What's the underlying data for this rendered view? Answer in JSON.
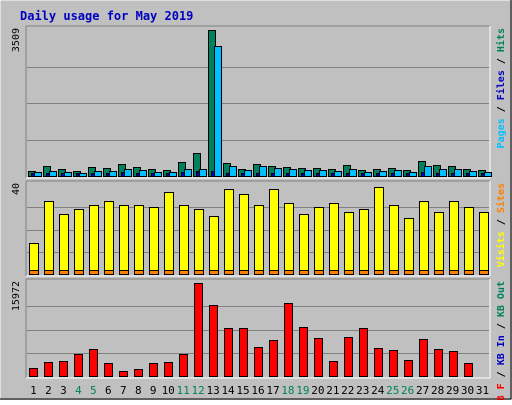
{
  "chart_data": {
    "type": "bar",
    "title": "Daily usage for May 2019",
    "categories": [
      "1",
      "2",
      "3",
      "4",
      "5",
      "6",
      "7",
      "8",
      "9",
      "10",
      "11",
      "12",
      "13",
      "14",
      "15",
      "16",
      "17",
      "18",
      "19",
      "20",
      "21",
      "22",
      "23",
      "24",
      "25",
      "26",
      "27",
      "28",
      "29",
      "30",
      "31"
    ],
    "weekend_days": [
      "4",
      "5",
      "11",
      "12",
      "18",
      "19",
      "25",
      "26"
    ],
    "panels": [
      {
        "name": "top",
        "ymax_label": "3509",
        "ylim": [
          0,
          3509
        ],
        "right_label_parts": [
          {
            "text": "Pages",
            "color": "#00C0FF"
          },
          {
            "text": " / ",
            "color": "#000000"
          },
          {
            "text": "Files",
            "color": "#0000C0"
          },
          {
            "text": " / ",
            "color": "#000000"
          },
          {
            "text": "Hits",
            "color": "#00805C"
          }
        ],
        "series": [
          {
            "name": "Hits",
            "color": "#00805C",
            "values": [
              120,
              250,
              160,
              130,
              220,
              200,
              300,
              220,
              160,
              150,
              330,
              560,
              3509,
              310,
              180,
              290,
              240,
              220,
              200,
              190,
              170,
              270,
              150,
              170,
              200,
              140,
              370,
              270,
              240,
              160,
              140
            ]
          },
          {
            "name": "Files",
            "color": "#0000C0",
            "values": [
              40,
              60,
              50,
              40,
              60,
              60,
              90,
              70,
              50,
              50,
              90,
              120,
              120,
              80,
              50,
              80,
              70,
              70,
              60,
              60,
              50,
              70,
              40,
              50,
              60,
              40,
              100,
              80,
              70,
              50,
              40
            ]
          },
          {
            "name": "Pages",
            "color": "#00C0FF",
            "values": [
              90,
              130,
              100,
              80,
              110,
              120,
              180,
              140,
              100,
              100,
              170,
              170,
              3120,
              230,
              150,
              230,
              190,
              170,
              150,
              150,
              130,
              180,
              100,
              120,
              140,
              100,
              250,
              180,
              160,
              110,
              100
            ]
          }
        ]
      },
      {
        "name": "middle",
        "ymax_label": "40",
        "ylim": [
          0,
          40
        ],
        "right_label_parts": [
          {
            "text": "Visits",
            "color": "#FFFF00"
          },
          {
            "text": " / ",
            "color": "#000000"
          },
          {
            "text": "Sites",
            "color": "#FF8000"
          }
        ],
        "series": [
          {
            "name": "Visits",
            "color": "#FFFF00",
            "values": [
              14,
              33,
              27,
              29,
              31,
              33,
              31,
              31,
              30,
              37,
              31,
              29,
              26,
              38,
              36,
              31,
              38,
              32,
              27,
              30,
              32,
              28,
              29,
              39,
              31,
              25,
              33,
              28,
              33,
              30,
              28
            ]
          },
          {
            "name": "Sites",
            "color": "#FF8000",
            "values": [
              2,
              2,
              2,
              2,
              2,
              2,
              2,
              2,
              2,
              2,
              2,
              2,
              2,
              2,
              2,
              2,
              2,
              2,
              2,
              2,
              2,
              2,
              2,
              2,
              2,
              2,
              2,
              2,
              2,
              2,
              2
            ]
          }
        ]
      },
      {
        "name": "bottom",
        "ymax_label": "15972",
        "ylim": [
          0,
          15972
        ],
        "right_label_parts": [
          {
            "text": "KB F",
            "color": "#FF0000"
          },
          {
            "text": " / ",
            "color": "#000000"
          },
          {
            "text": "KB In",
            "color": "#0000C0"
          },
          {
            "text": " / ",
            "color": "#000000"
          },
          {
            "text": "KB Out",
            "color": "#00805C"
          }
        ],
        "series": [
          {
            "name": "KB F",
            "color": "#FF0000",
            "values": [
              1300,
              2350,
              2600,
              3800,
              4600,
              2300,
              900,
              1200,
              2200,
              2400,
              3800,
              15972,
              12200,
              8300,
              8200,
              5000,
              6200,
              12600,
              8400,
              6600,
              2600,
              6700,
              8300,
              4800,
              4400,
              2700,
              6300,
              4600,
              4300,
              2200,
              0
            ]
          }
        ]
      }
    ],
    "colors": {
      "background": "#C0C0C0",
      "title": "#0000C0",
      "weekday_label": "#000000",
      "weekend_label": "#00805C",
      "grid": "#808080",
      "border": "#000000"
    }
  }
}
